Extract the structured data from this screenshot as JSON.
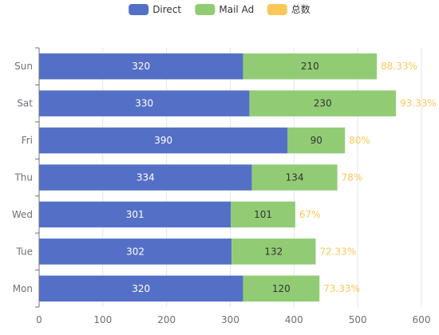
{
  "chart_data": {
    "type": "bar",
    "orientation": "horizontal",
    "stacked": true,
    "categories": [
      "Mon",
      "Tue",
      "Wed",
      "Thu",
      "Fri",
      "Sat",
      "Sun"
    ],
    "series": [
      {
        "name": "Direct",
        "values": [
          320,
          302,
          301,
          334,
          390,
          330,
          320
        ],
        "color": "#5470c6",
        "label_color": "#ffffff"
      },
      {
        "name": "Mail Ad",
        "values": [
          120,
          132,
          101,
          134,
          90,
          230,
          210
        ],
        "color": "#91cc75",
        "label_color": "#333333"
      },
      {
        "name": "总数",
        "color": "#fac858",
        "labels": [
          "73.33%",
          "72.33%",
          "67%",
          "78%",
          "80%",
          "93.33%",
          "88.33%"
        ]
      }
    ],
    "x_ticks": [
      0,
      100,
      200,
      300,
      400,
      500,
      600
    ],
    "xlim": [
      0,
      600
    ],
    "title": "",
    "xlabel": "",
    "ylabel": "",
    "legend_position": "top-center",
    "grid": "vertical-lines"
  }
}
